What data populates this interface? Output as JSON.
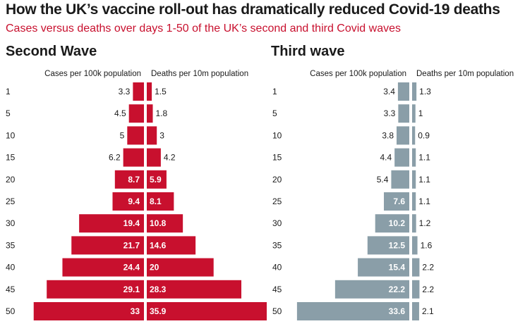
{
  "title": "How the UK’s vaccine roll-out has dramatically reduced Covid-19 deaths",
  "subtitle": "Cases versus deaths over days 1-50 of the UK’s second and third Covid waves",
  "colors": {
    "subtitle": "#c8102e",
    "second_wave_bar": "#c8102e",
    "third_wave_bar": "#8a9ea8",
    "text": "#1a1a1a"
  },
  "chart_data": [
    {
      "type": "bar",
      "title": "Second Wave",
      "categories": [
        "1",
        "5",
        "10",
        "15",
        "20",
        "25",
        "30",
        "35",
        "40",
        "45",
        "50"
      ],
      "series": [
        {
          "name": "Cases per 100k population",
          "values": [
            3.3,
            4.5,
            5,
            6.2,
            8.7,
            9.4,
            19.4,
            21.7,
            24.4,
            29.1,
            33
          ]
        },
        {
          "name": "Deaths per 10m population",
          "values": [
            1.5,
            1.8,
            3,
            4.2,
            5.9,
            8.1,
            10.8,
            14.6,
            20,
            28.3,
            35.9
          ]
        }
      ]
    },
    {
      "type": "bar",
      "title": "Third wave",
      "categories": [
        "1",
        "5",
        "10",
        "15",
        "20",
        "25",
        "30",
        "35",
        "40",
        "45",
        "50"
      ],
      "series": [
        {
          "name": "Cases per 100k population",
          "values": [
            3.4,
            3.3,
            3.8,
            4.4,
            5.4,
            7.6,
            10.2,
            12.5,
            15.4,
            22.2,
            33.6
          ]
        },
        {
          "name": "Deaths per 10m population",
          "values": [
            1.3,
            1,
            0.9,
            1.1,
            1.1,
            1.1,
            1.2,
            1.6,
            2.2,
            2.2,
            2.1
          ]
        }
      ]
    }
  ]
}
